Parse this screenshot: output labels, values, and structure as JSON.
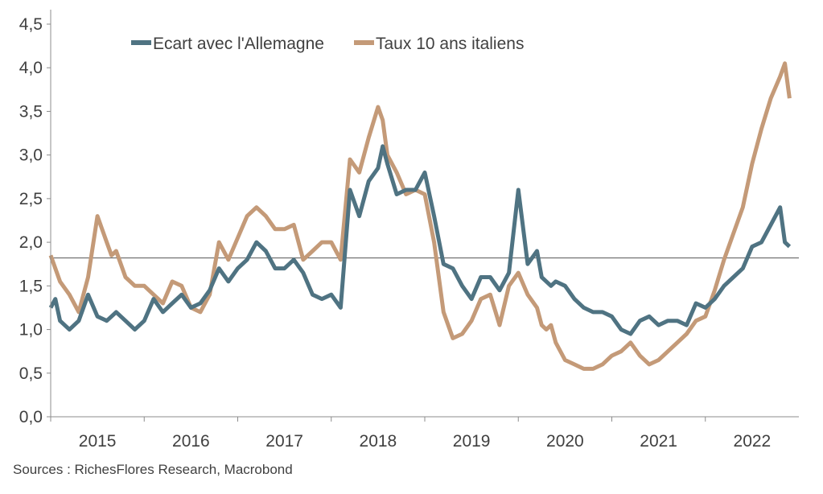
{
  "chart_data": {
    "type": "line",
    "title": "",
    "xlabel": "",
    "ylabel": "",
    "ylim": [
      0,
      4.5
    ],
    "y_ticks": [
      "0,0",
      "0,5",
      "1,0",
      "1,5",
      "2,0",
      "2,5",
      "3,0",
      "3,5",
      "4,0",
      "4,5"
    ],
    "y_tick_values": [
      0,
      0.5,
      1.0,
      1.5,
      2.0,
      2.5,
      3.0,
      3.5,
      4.0,
      4.5
    ],
    "xlim": [
      2014.5,
      2022.5
    ],
    "x_ticks": [
      "2015",
      "2016",
      "2017",
      "2018",
      "2019",
      "2020",
      "2021",
      "2022"
    ],
    "x_tick_values": [
      2015.0,
      2016.0,
      2017.0,
      2018.0,
      2019.0,
      2020.0,
      2021.0,
      2022.0
    ],
    "reference_line": 1.82,
    "legend_position": "top-left",
    "series": [
      {
        "name": "Ecart avec l'Allemagne",
        "color": "#4f7382",
        "x": [
          2014.5,
          2014.55,
          2014.6,
          2014.7,
          2014.8,
          2014.9,
          2015.0,
          2015.1,
          2015.15,
          2015.2,
          2015.3,
          2015.4,
          2015.5,
          2015.6,
          2015.7,
          2015.8,
          2015.9,
          2016.0,
          2016.1,
          2016.2,
          2016.3,
          2016.4,
          2016.5,
          2016.6,
          2016.7,
          2016.8,
          2016.9,
          2017.0,
          2017.1,
          2017.2,
          2017.3,
          2017.4,
          2017.5,
          2017.6,
          2017.7,
          2017.8,
          2017.9,
          2018.0,
          2018.05,
          2018.1,
          2018.2,
          2018.3,
          2018.4,
          2018.5,
          2018.6,
          2018.7,
          2018.8,
          2018.9,
          2019.0,
          2019.1,
          2019.2,
          2019.3,
          2019.4,
          2019.5,
          2019.6,
          2019.7,
          2019.75,
          2019.8,
          2019.85,
          2019.9,
          2020.0,
          2020.1,
          2020.2,
          2020.3,
          2020.4,
          2020.5,
          2020.6,
          2020.7,
          2020.8,
          2020.9,
          2021.0,
          2021.1,
          2021.2,
          2021.3,
          2021.4,
          2021.5,
          2021.6,
          2021.7,
          2021.8,
          2021.9,
          2022.0,
          2022.1,
          2022.2,
          2022.3,
          2022.35,
          2022.4
        ],
        "values": [
          1.25,
          1.35,
          1.1,
          1.0,
          1.1,
          1.4,
          1.15,
          1.1,
          1.15,
          1.2,
          1.1,
          1.0,
          1.1,
          1.35,
          1.2,
          1.3,
          1.4,
          1.25,
          1.3,
          1.45,
          1.7,
          1.55,
          1.7,
          1.8,
          2.0,
          1.9,
          1.7,
          1.7,
          1.8,
          1.65,
          1.4,
          1.35,
          1.4,
          1.25,
          2.6,
          2.3,
          2.7,
          2.85,
          3.1,
          2.9,
          2.55,
          2.6,
          2.6,
          2.8,
          2.3,
          1.75,
          1.7,
          1.5,
          1.35,
          1.6,
          1.6,
          1.45,
          1.65,
          2.6,
          1.75,
          1.9,
          1.6,
          1.55,
          1.5,
          1.55,
          1.5,
          1.35,
          1.25,
          1.2,
          1.2,
          1.15,
          1.0,
          0.95,
          1.1,
          1.15,
          1.05,
          1.1,
          1.1,
          1.05,
          1.3,
          1.25,
          1.35,
          1.5,
          1.6,
          1.7,
          1.95,
          2.0,
          2.2,
          2.4,
          2.0,
          1.95
        ]
      },
      {
        "name": "Taux 10 ans italiens",
        "color": "#c49a78",
        "x": [
          2014.5,
          2014.55,
          2014.6,
          2014.7,
          2014.8,
          2014.9,
          2015.0,
          2015.1,
          2015.15,
          2015.2,
          2015.3,
          2015.4,
          2015.5,
          2015.6,
          2015.7,
          2015.8,
          2015.9,
          2016.0,
          2016.1,
          2016.2,
          2016.3,
          2016.4,
          2016.5,
          2016.6,
          2016.7,
          2016.8,
          2016.9,
          2017.0,
          2017.1,
          2017.2,
          2017.3,
          2017.4,
          2017.5,
          2017.6,
          2017.7,
          2017.8,
          2017.9,
          2018.0,
          2018.05,
          2018.1,
          2018.2,
          2018.3,
          2018.4,
          2018.5,
          2018.6,
          2018.7,
          2018.8,
          2018.9,
          2019.0,
          2019.1,
          2019.2,
          2019.3,
          2019.4,
          2019.5,
          2019.6,
          2019.7,
          2019.75,
          2019.8,
          2019.85,
          2019.9,
          2020.0,
          2020.1,
          2020.2,
          2020.3,
          2020.4,
          2020.5,
          2020.6,
          2020.7,
          2020.8,
          2020.9,
          2021.0,
          2021.1,
          2021.2,
          2021.3,
          2021.4,
          2021.5,
          2021.6,
          2021.7,
          2021.8,
          2021.9,
          2022.0,
          2022.1,
          2022.2,
          2022.3,
          2022.35,
          2022.4
        ],
        "values": [
          1.85,
          1.7,
          1.55,
          1.4,
          1.2,
          1.6,
          2.3,
          2.0,
          1.85,
          1.9,
          1.6,
          1.5,
          1.5,
          1.4,
          1.3,
          1.55,
          1.5,
          1.25,
          1.2,
          1.4,
          2.0,
          1.8,
          2.05,
          2.3,
          2.4,
          2.3,
          2.15,
          2.15,
          2.2,
          1.8,
          1.9,
          2.0,
          2.0,
          1.8,
          2.95,
          2.8,
          3.2,
          3.55,
          3.4,
          3.0,
          2.8,
          2.55,
          2.6,
          2.55,
          2.0,
          1.2,
          0.9,
          0.95,
          1.1,
          1.35,
          1.4,
          1.05,
          1.5,
          1.65,
          1.4,
          1.25,
          1.05,
          1.0,
          1.05,
          0.85,
          0.65,
          0.6,
          0.55,
          0.55,
          0.6,
          0.7,
          0.75,
          0.85,
          0.7,
          0.6,
          0.65,
          0.75,
          0.85,
          0.95,
          1.1,
          1.15,
          1.45,
          1.8,
          2.1,
          2.4,
          2.9,
          3.3,
          3.65,
          3.9,
          4.05,
          3.65
        ]
      }
    ],
    "source": "Sources : RichesFlores Research, Macrobond"
  }
}
